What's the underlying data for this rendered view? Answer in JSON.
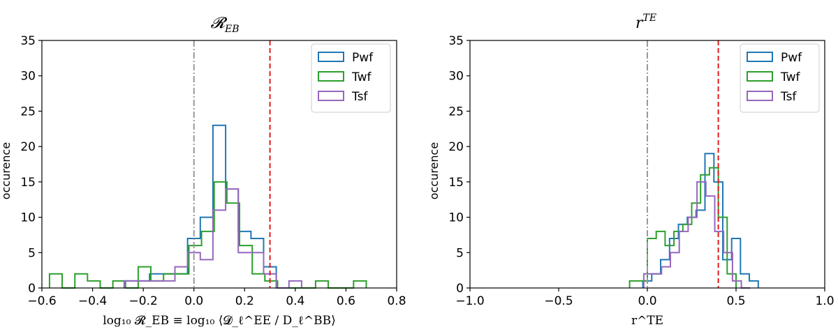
{
  "colors": {
    "Pwf": "#1f77b4",
    "Twf": "#2ca02c",
    "Tsf": "#9467bd",
    "zero_line": "#999999",
    "threshold_line": "#e31a1c"
  },
  "chart_data": [
    {
      "type": "histogram",
      "title": "𝓡",
      "title_sub": "EB",
      "xlabel": "log₁₀ 𝓡_EB ≡ log₁₀ ⟨𝓓_ℓ^EE / D_ℓ^BB⟩",
      "ylabel": "occurence",
      "xlim": [
        -0.6,
        0.8
      ],
      "ylim": [
        0,
        35
      ],
      "xticks": [
        "−0.6",
        "−0.4",
        "−0.2",
        "0.0",
        "0.2",
        "0.4",
        "0.6",
        "0.8"
      ],
      "xtick_values": [
        -0.6,
        -0.4,
        -0.2,
        0.0,
        0.2,
        0.4,
        0.6,
        0.8
      ],
      "yticks": [
        "0",
        "5",
        "10",
        "15",
        "20",
        "25",
        "30",
        "35"
      ],
      "ytick_values": [
        0,
        5,
        10,
        15,
        20,
        25,
        30,
        35
      ],
      "legend_position": "top-right",
      "vlines": [
        {
          "x": 0.0,
          "style": "dashdot",
          "color_key": "zero_line"
        },
        {
          "x": 0.3,
          "style": "dashed",
          "color_key": "threshold_line"
        }
      ],
      "series": [
        {
          "name": "Pwf",
          "edges": [
            -0.275,
            -0.225,
            -0.175,
            -0.125,
            -0.075,
            -0.025,
            0.025,
            0.075,
            0.125,
            0.175,
            0.225,
            0.275,
            0.325
          ],
          "counts": [
            1,
            1,
            2,
            2,
            2,
            7,
            10,
            23,
            14,
            8,
            7,
            3
          ]
        },
        {
          "name": "Twf",
          "edges": [
            -0.57,
            -0.52,
            -0.47,
            -0.42,
            -0.37,
            -0.32,
            -0.27,
            -0.22,
            -0.17,
            -0.12,
            -0.07,
            -0.02,
            0.03,
            0.08,
            0.13,
            0.18,
            0.23,
            0.28,
            0.33,
            0.38,
            0.43,
            0.48,
            0.53,
            0.58,
            0.63,
            0.68
          ],
          "counts": [
            2,
            0,
            2,
            1,
            0,
            1,
            0,
            3,
            1,
            2,
            2,
            6,
            8,
            15,
            12,
            6,
            2,
            1,
            0,
            0,
            0,
            1,
            0,
            0,
            1
          ]
        },
        {
          "name": "Tsf",
          "edges": [
            -0.275,
            -0.225,
            -0.175,
            -0.125,
            -0.075,
            -0.025,
            0.025,
            0.075,
            0.125,
            0.175,
            0.225,
            0.275,
            0.325,
            0.375,
            0.425
          ],
          "counts": [
            1,
            1,
            1,
            1,
            3,
            5,
            4,
            11,
            14,
            5,
            5,
            2,
            0,
            1
          ]
        }
      ]
    },
    {
      "type": "histogram",
      "title": "r",
      "title_sup": "TE",
      "xlabel": "r^TE",
      "ylabel": "occurence",
      "xlim": [
        -1.0,
        1.0
      ],
      "ylim": [
        0,
        35
      ],
      "xticks": [
        "−1.0",
        "−0.5",
        "0.0",
        "0.5",
        "1.0"
      ],
      "xtick_values": [
        -1.0,
        -0.5,
        0.0,
        0.5,
        1.0
      ],
      "yticks": [
        "0",
        "5",
        "10",
        "15",
        "20",
        "25",
        "30",
        "35"
      ],
      "ytick_values": [
        0,
        5,
        10,
        15,
        20,
        25,
        30,
        35
      ],
      "legend_position": "top-right",
      "vlines": [
        {
          "x": 0.0,
          "style": "dashdot",
          "color_key": "zero_line"
        },
        {
          "x": 0.4,
          "style": "dashed",
          "color_key": "threshold_line"
        }
      ],
      "series": [
        {
          "name": "Pwf",
          "edges": [
            -0.025,
            0.025,
            0.075,
            0.125,
            0.175,
            0.225,
            0.275,
            0.325,
            0.375,
            0.425,
            0.475,
            0.525,
            0.575,
            0.625
          ],
          "counts": [
            1,
            2,
            4,
            7,
            9,
            10,
            11,
            19,
            15,
            4,
            7,
            2,
            1
          ]
        },
        {
          "name": "Twf",
          "edges": [
            -0.1,
            -0.05,
            0.0,
            0.05,
            0.1,
            0.15,
            0.2,
            0.25,
            0.3,
            0.35,
            0.4,
            0.45,
            0.5
          ],
          "counts": [
            1,
            1,
            7,
            8,
            6,
            8,
            9,
            12,
            16,
            17,
            10,
            2
          ]
        },
        {
          "name": "Tsf",
          "edges": [
            -0.02,
            0.03,
            0.08,
            0.13,
            0.18,
            0.23,
            0.28,
            0.33,
            0.38,
            0.43,
            0.48,
            0.53,
            0.58
          ],
          "counts": [
            2,
            2,
            3,
            5,
            8,
            10,
            15,
            13,
            8,
            5,
            1,
            0
          ]
        }
      ]
    }
  ]
}
